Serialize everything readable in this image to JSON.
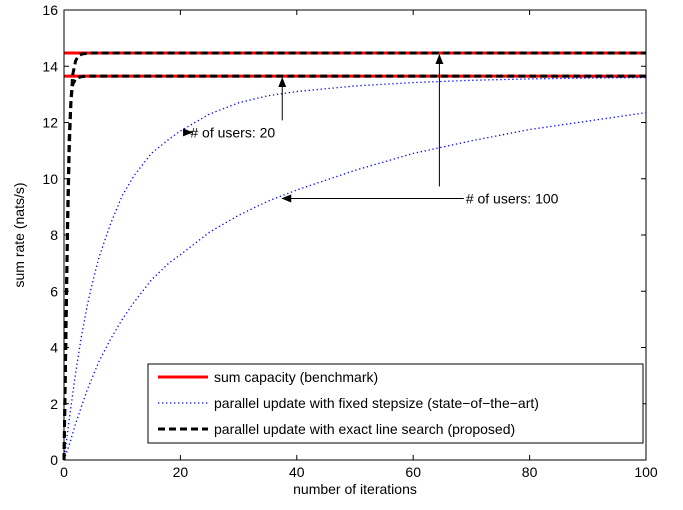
{
  "chart_data": {
    "type": "line",
    "xlabel": "number of iterations",
    "ylabel": "sum rate (nats/s)",
    "xlim": [
      0,
      100
    ],
    "ylim": [
      0,
      16
    ],
    "xticks": [
      "0",
      "20",
      "40",
      "60",
      "80",
      "100"
    ],
    "yticks": [
      "0",
      "2",
      "4",
      "6",
      "8",
      "10",
      "12",
      "14",
      "16"
    ],
    "grid": false,
    "legend_position": "bottom-right",
    "series": [
      {
        "name": "sum capacity (benchmark)",
        "style": "solid",
        "color": "#ff0000",
        "lines": [
          {
            "x": [
              0,
              100
            ],
            "y": [
              14.47,
              14.47
            ]
          },
          {
            "x": [
              0,
              100
            ],
            "y": [
              13.65,
              13.65
            ]
          }
        ]
      },
      {
        "name": "parallel update with fixed stepsize (state−of−the−art)",
        "style": "dotted",
        "color": "#0000ff",
        "lines": [
          {
            "x": [
              0,
              1,
              2,
              3,
              4,
              5,
              6,
              8,
              10,
              12,
              15,
              18,
              20,
              25,
              30,
              35,
              40,
              50,
              60,
              70,
              80,
              90,
              100
            ],
            "y": [
              0,
              1.6,
              3.1,
              4.4,
              5.5,
              6.4,
              7.2,
              8.4,
              9.4,
              10.1,
              10.9,
              11.4,
              11.7,
              12.3,
              12.7,
              12.95,
              13.1,
              13.3,
              13.42,
              13.5,
              13.55,
              13.58,
              13.6
            ]
          },
          {
            "x": [
              0,
              1,
              2,
              3,
              4,
              5,
              6,
              8,
              10,
              12,
              15,
              18,
              20,
              25,
              30,
              35,
              40,
              50,
              60,
              70,
              80,
              90,
              100
            ],
            "y": [
              0,
              0.6,
              1.3,
              1.9,
              2.5,
              3.0,
              3.5,
              4.3,
              5.0,
              5.6,
              6.4,
              7.0,
              7.3,
              8.1,
              8.7,
              9.2,
              9.6,
              10.3,
              10.9,
              11.35,
              11.75,
              12.05,
              12.35
            ]
          }
        ]
      },
      {
        "name": "parallel update with exact line search (proposed)",
        "style": "dashed",
        "color": "#000000",
        "lines": [
          {
            "x": [
              0,
              0.3,
              0.6,
              0.9,
              1.2,
              1.5,
              2,
              2.5,
              3,
              4,
              5,
              100
            ],
            "y": [
              0,
              4,
              8,
              11,
              12.8,
              13.7,
              14.2,
              14.37,
              14.43,
              14.46,
              14.47,
              14.47
            ]
          },
          {
            "x": [
              0,
              0.3,
              0.6,
              0.9,
              1.2,
              1.5,
              2,
              2.5,
              3,
              4,
              100
            ],
            "y": [
              0,
              4.2,
              8.5,
              11.5,
              12.8,
              13.35,
              13.55,
              13.6,
              13.63,
              13.65,
              13.65
            ]
          }
        ]
      }
    ],
    "annotations": [
      {
        "text": "# of users: 20",
        "text_x": 29,
        "text_y": 11.65,
        "arrow_to_x": 22,
        "arrow_to_y": 11.65
      },
      {
        "text": "# of users: 20",
        "text_x": 37.5,
        "text_y": 11.65,
        "arrow_to_x": 37.5,
        "arrow_to_y": 13.65,
        "arrow_only": true
      },
      {
        "text": "# of users: 100",
        "text_x": 77,
        "text_y": 9.3,
        "arrow_to_x": 37.5,
        "arrow_to_y": 9.3
      },
      {
        "text": "# of users: 100",
        "text_x": 64.5,
        "text_y": 9.3,
        "arrow_to_x": 64.5,
        "arrow_to_y": 14.47,
        "arrow_only": true
      }
    ]
  }
}
